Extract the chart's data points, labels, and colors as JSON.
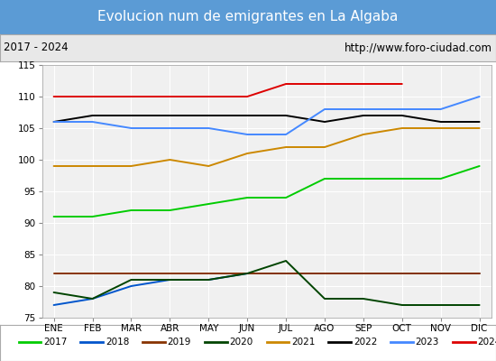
{
  "title": "Evolucion num de emigrantes en La Algaba",
  "subtitle_left": "2017 - 2024",
  "subtitle_right": "http://www.foro-ciudad.com",
  "title_bg_color": "#5b9bd5",
  "title_text_color": "#ffffff",
  "subtitle_bg_color": "#e8e8e8",
  "subtitle_text_color": "#000000",
  "plot_bg_color": "#f0f0f0",
  "outer_bg_color": "#ffffff",
  "months": [
    "ENE",
    "FEB",
    "MAR",
    "ABR",
    "MAY",
    "JUN",
    "JUL",
    "AGO",
    "SEP",
    "OCT",
    "NOV",
    "DIC"
  ],
  "ylim": [
    75,
    115
  ],
  "yticks": [
    75,
    80,
    85,
    90,
    95,
    100,
    105,
    110,
    115
  ],
  "series": {
    "2017": {
      "color": "#00cc00",
      "linewidth": 1.4,
      "values": [
        91,
        91,
        92,
        92,
        93,
        94,
        94,
        97,
        97,
        97,
        97,
        99
      ]
    },
    "2018": {
      "color": "#0055cc",
      "linewidth": 1.4,
      "values": [
        77,
        78,
        80,
        81,
        81,
        82,
        82,
        82,
        82,
        82,
        82,
        82
      ]
    },
    "2019": {
      "color": "#883300",
      "linewidth": 1.4,
      "values": [
        82,
        82,
        82,
        82,
        82,
        82,
        82,
        82,
        82,
        82,
        82,
        82
      ]
    },
    "2020": {
      "color": "#004400",
      "linewidth": 1.4,
      "values": [
        79,
        78,
        81,
        81,
        81,
        82,
        84,
        78,
        78,
        77,
        77,
        77
      ]
    },
    "2021": {
      "color": "#cc8800",
      "linewidth": 1.4,
      "values": [
        99,
        99,
        99,
        100,
        99,
        101,
        102,
        102,
        104,
        105,
        105,
        105
      ]
    },
    "2022": {
      "color": "#000000",
      "linewidth": 1.4,
      "values": [
        106,
        107,
        107,
        107,
        107,
        107,
        107,
        106,
        107,
        107,
        106,
        106
      ]
    },
    "2023": {
      "color": "#4488ff",
      "linewidth": 1.4,
      "values": [
        106,
        106,
        105,
        105,
        105,
        104,
        104,
        108,
        108,
        108,
        108,
        110
      ]
    },
    "2024": {
      "color": "#dd0000",
      "linewidth": 1.4,
      "values": [
        110,
        110,
        110,
        110,
        110,
        110,
        112,
        112,
        112,
        112,
        null,
        null
      ]
    }
  },
  "legend_order": [
    "2017",
    "2018",
    "2019",
    "2020",
    "2021",
    "2022",
    "2023",
    "2024"
  ]
}
